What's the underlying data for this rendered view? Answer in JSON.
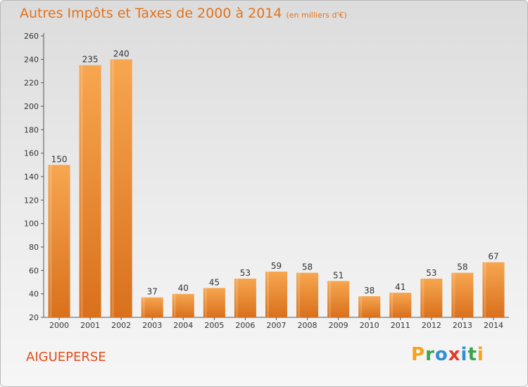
{
  "chart_data": {
    "type": "bar",
    "title": "Autres Impôts et Taxes de 2000 à 2014",
    "unit_label": "(en milliers d'€)",
    "categories": [
      "2000",
      "2001",
      "2002",
      "2003",
      "2004",
      "2005",
      "2006",
      "2007",
      "2008",
      "2009",
      "2010",
      "2011",
      "2012",
      "2013",
      "2014"
    ],
    "values": [
      150,
      235,
      240,
      37,
      40,
      45,
      53,
      59,
      58,
      51,
      38,
      41,
      53,
      58,
      67
    ],
    "ylim": [
      20,
      260
    ],
    "yticks": [
      20,
      40,
      60,
      80,
      100,
      120,
      140,
      160,
      180,
      200,
      220,
      240,
      260
    ],
    "grid": false,
    "bar_color": "#f08a2c"
  },
  "commune": "AIGUEPERSE",
  "brand": {
    "letters": [
      "P",
      "r",
      "o",
      "x",
      "i",
      "t",
      "i"
    ],
    "colors": [
      "#f7a21b",
      "#3fa34d",
      "#2f8fd6",
      "#e23b2a",
      "#2f8fd6",
      "#3fa34d",
      "#f7a21b"
    ]
  }
}
